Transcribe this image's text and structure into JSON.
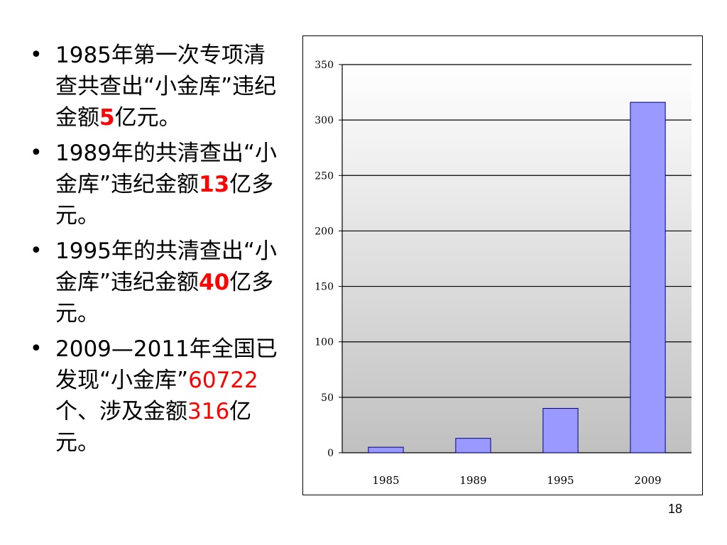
{
  "bullets": [
    {
      "parts": [
        {
          "text": "1985年第一次专项清查共查出“小金库”违纪金额",
          "style": "plain"
        },
        {
          "text": "5",
          "style": "red-bold"
        },
        {
          "text": "亿元。",
          "style": "plain"
        }
      ]
    },
    {
      "parts": [
        {
          "text": "1989年的共清查出“小金库”违纪金额",
          "style": "plain"
        },
        {
          "text": "13",
          "style": "red-bold"
        },
        {
          "text": "亿多元。",
          "style": "plain"
        }
      ]
    },
    {
      "parts": [
        {
          "text": "1995年的共清查出“小金库”违纪金额",
          "style": "plain"
        },
        {
          "text": "40",
          "style": "red-bold"
        },
        {
          "text": "亿多元。",
          "style": "plain"
        }
      ]
    },
    {
      "parts": [
        {
          "text": "2009—2011年全国已发现“小金库”",
          "style": "plain"
        },
        {
          "text": "60722",
          "style": "red"
        },
        {
          "text": "个、涉及金额",
          "style": "plain"
        },
        {
          "text": "316",
          "style": "red"
        },
        {
          "text": "亿元。",
          "style": "plain"
        }
      ]
    }
  ],
  "bullet_glyph": "•",
  "page_number": "18",
  "chart_data": {
    "type": "bar",
    "categories": [
      "1985",
      "1989",
      "1995",
      "2009"
    ],
    "values": [
      5,
      13,
      40,
      316
    ],
    "yticks": [
      0,
      50,
      100,
      150,
      200,
      250,
      300,
      350
    ],
    "ylim": [
      0,
      350
    ],
    "grid": true,
    "legend": "none",
    "colors": {
      "bar": "#9999ff",
      "bar_edge": "#000080"
    }
  }
}
